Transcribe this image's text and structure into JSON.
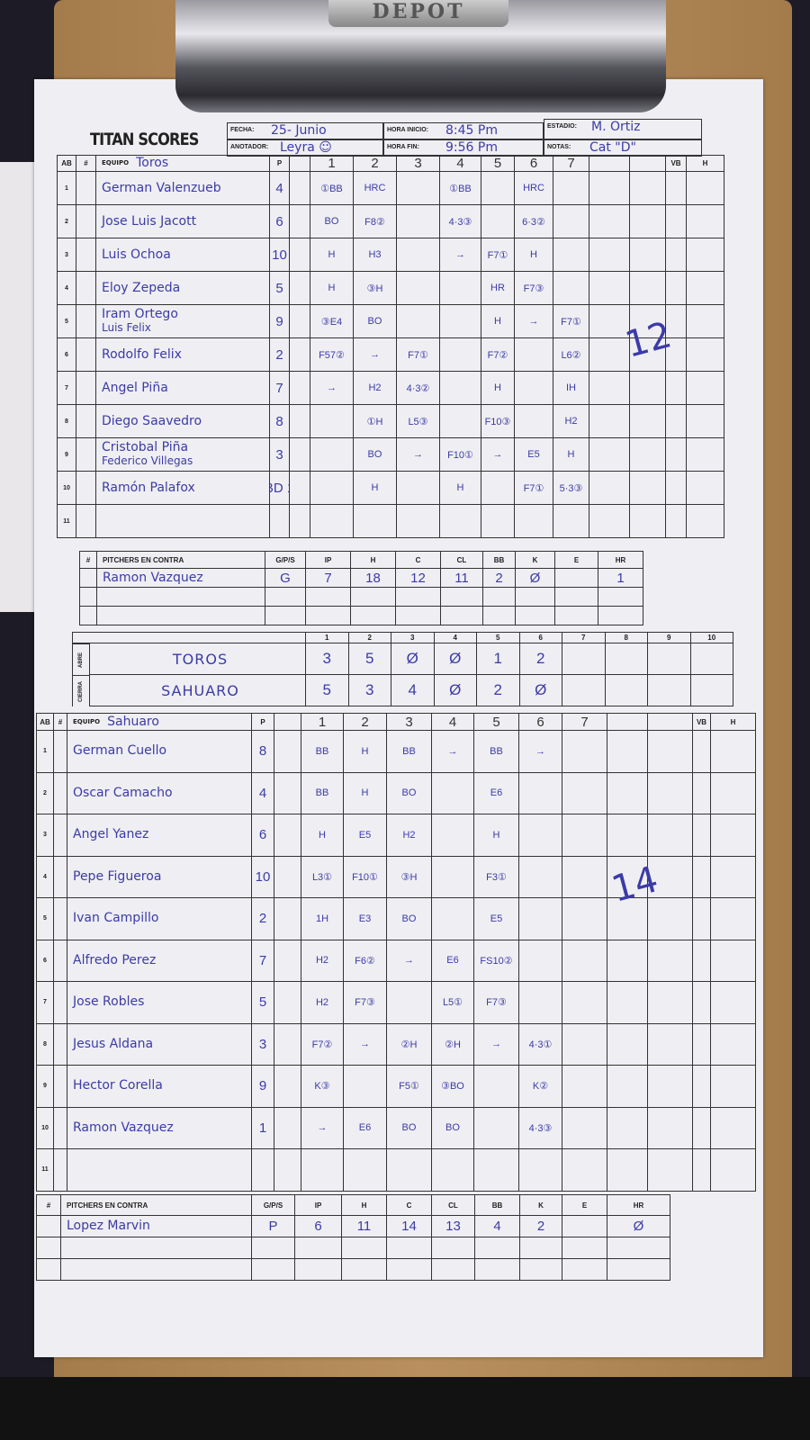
{
  "clip_brand": "DEPOT",
  "logo": "TITAN SCORES",
  "header": {
    "fecha_label": "FECHA:",
    "fecha": "25- Junio",
    "anotador_label": "ANOTADOR:",
    "anotador": "Leyra ☺",
    "hora_inicio_label": "HORA INICIO:",
    "hora_inicio": "8:45 Pm",
    "hora_fin_label": "HORA FIN:",
    "hora_fin": "9:56 Pm",
    "estadio_label": "ESTADIO:",
    "estadio": "M. Ortiz",
    "notas_label": "NOTAS:",
    "notas": "Cat \"D\""
  },
  "lineup_headers": {
    "ab": "AB",
    "num": "#",
    "equipo": "EQUIPO",
    "p": "P",
    "innings": [
      "1",
      "2",
      "3",
      "4",
      "5",
      "6",
      "7"
    ],
    "vb": "VB",
    "h": "H"
  },
  "away": {
    "team": "Toros",
    "rows": [
      {
        "no": "1",
        "names": [
          "German Valenzueb"
        ],
        "pos": "4",
        "plays": [
          "①BB",
          "HRC",
          "",
          "①BB",
          "",
          "HRC",
          ""
        ]
      },
      {
        "no": "2",
        "names": [
          "Jose Luis Jacott"
        ],
        "pos": "6",
        "plays": [
          "BO",
          "F8②",
          "",
          "4·3③",
          "",
          "6·3②",
          ""
        ]
      },
      {
        "no": "3",
        "names": [
          "Luis Ochoa"
        ],
        "pos": "10",
        "plays": [
          "H",
          "H3",
          "",
          "→",
          "F7①",
          "H",
          ""
        ]
      },
      {
        "no": "4",
        "names": [
          "Eloy Zepeda"
        ],
        "pos": "5",
        "plays": [
          "H",
          "③H",
          "",
          "",
          "HR",
          "F7③",
          ""
        ]
      },
      {
        "no": "5",
        "names": [
          "Iram Ortego",
          "Luis Felix"
        ],
        "pos": "9",
        "plays": [
          "③E4",
          "BO",
          "",
          "",
          "H",
          "→",
          "F7①"
        ]
      },
      {
        "no": "6",
        "names": [
          "Rodolfo Felix"
        ],
        "pos": "2",
        "plays": [
          "F57②",
          "→",
          "F7①",
          "",
          "F7②",
          "",
          "L6②"
        ]
      },
      {
        "no": "7",
        "names": [
          "Angel Piña"
        ],
        "pos": "7",
        "plays": [
          "→",
          "H2",
          "4·3②",
          "",
          "H",
          "",
          "IH"
        ]
      },
      {
        "no": "8",
        "names": [
          "Diego Saavedro"
        ],
        "pos": "8",
        "plays": [
          "",
          "①H",
          "L5③",
          "",
          "F10③",
          "",
          "H2"
        ]
      },
      {
        "no": "9",
        "names": [
          "Cristobal Piña",
          "Federico Villegas"
        ],
        "pos": "3",
        "plays": [
          "",
          "BO",
          "→",
          "F10①",
          "→",
          "E5",
          "H"
        ]
      },
      {
        "no": "10",
        "names": [
          "Ramón Palafox"
        ],
        "pos": "BD 1",
        "plays": [
          "",
          "H",
          "",
          "H",
          "",
          "F7①",
          "5·3③"
        ]
      },
      {
        "no": "11",
        "names": [
          ""
        ],
        "pos": "",
        "plays": [
          "",
          "",
          "",
          "",
          "",
          "",
          ""
        ]
      }
    ],
    "tally": "12"
  },
  "pitcher_headers": {
    "num": "#",
    "name": "PITCHERS EN CONTRA",
    "gps": "G/P/S",
    "ip": "IP",
    "h": "H",
    "c": "C",
    "cl": "CL",
    "bb": "BB",
    "k": "K",
    "e": "E",
    "hr": "HR"
  },
  "away_pitchers": [
    {
      "name": "Ramon Vazquez",
      "gps": "G",
      "ip": "7",
      "h": "18",
      "c": "12",
      "cl": "11",
      "bb": "2",
      "k": "Ø",
      "e": "",
      "hr": "1"
    }
  ],
  "linescore": {
    "innings": [
      "1",
      "2",
      "3",
      "4",
      "5",
      "6",
      "7",
      "8",
      "9",
      "10"
    ],
    "rows": [
      {
        "side": "ABRE",
        "team": "TOROS",
        "runs": [
          "3",
          "5",
          "Ø",
          "Ø",
          "1",
          "2",
          "",
          "",
          "",
          ""
        ]
      },
      {
        "side": "CIERRA",
        "team": "SAHUARO",
        "runs": [
          "5",
          "3",
          "4",
          "Ø",
          "2",
          "Ø",
          "",
          "",
          "",
          ""
        ]
      }
    ]
  },
  "home": {
    "team": "Sahuaro",
    "rows": [
      {
        "no": "1",
        "names": [
          "German Cuello"
        ],
        "pos": "8",
        "plays": [
          "BB",
          "H",
          "BB",
          "→",
          "BB",
          "→",
          ""
        ]
      },
      {
        "no": "2",
        "names": [
          "Oscar Camacho"
        ],
        "pos": "4",
        "plays": [
          "BB",
          "H",
          "BO",
          "",
          "E6",
          "",
          ""
        ]
      },
      {
        "no": "3",
        "names": [
          "Angel Yanez"
        ],
        "pos": "6",
        "plays": [
          "H",
          "E5",
          "H2",
          "",
          "H",
          "",
          ""
        ]
      },
      {
        "no": "4",
        "names": [
          "Pepe Figueroa"
        ],
        "pos": "10",
        "plays": [
          "L3①",
          "F10①",
          "③H",
          "",
          "F3①",
          "",
          ""
        ]
      },
      {
        "no": "5",
        "names": [
          "Ivan Campillo"
        ],
        "pos": "2",
        "plays": [
          "1H",
          "E3",
          "BO",
          "",
          "E5",
          "",
          ""
        ]
      },
      {
        "no": "6",
        "names": [
          "Alfredo Perez"
        ],
        "pos": "7",
        "plays": [
          "H2",
          "F6②",
          "→",
          "E6",
          "FS10②",
          "",
          ""
        ]
      },
      {
        "no": "7",
        "names": [
          "Jose Robles"
        ],
        "pos": "5",
        "plays": [
          "H2",
          "F7③",
          "",
          "L5①",
          "F7③",
          "",
          ""
        ]
      },
      {
        "no": "8",
        "names": [
          "Jesus Aldana"
        ],
        "pos": "3",
        "plays": [
          "F7②",
          "→",
          "②H",
          "②H",
          "→",
          "4·3①",
          ""
        ]
      },
      {
        "no": "9",
        "names": [
          "Hector Corella"
        ],
        "pos": "9",
        "plays": [
          "K③",
          "",
          "F5①",
          "③BO",
          "",
          "K②",
          ""
        ]
      },
      {
        "no": "10",
        "names": [
          "Ramon Vazquez"
        ],
        "pos": "1",
        "plays": [
          "→",
          "E6",
          "BO",
          "BO",
          "",
          "4·3③",
          ""
        ]
      },
      {
        "no": "11",
        "names": [
          ""
        ],
        "pos": "",
        "plays": [
          "",
          "",
          "",
          "",
          "",
          "",
          ""
        ]
      }
    ],
    "tally": "14"
  },
  "home_pitchers": [
    {
      "name": "Lopez Marvin",
      "gps": "P",
      "ip": "6",
      "h": "11",
      "c": "14",
      "cl": "13",
      "bb": "4",
      "k": "2",
      "e": "",
      "hr": "Ø"
    }
  ]
}
